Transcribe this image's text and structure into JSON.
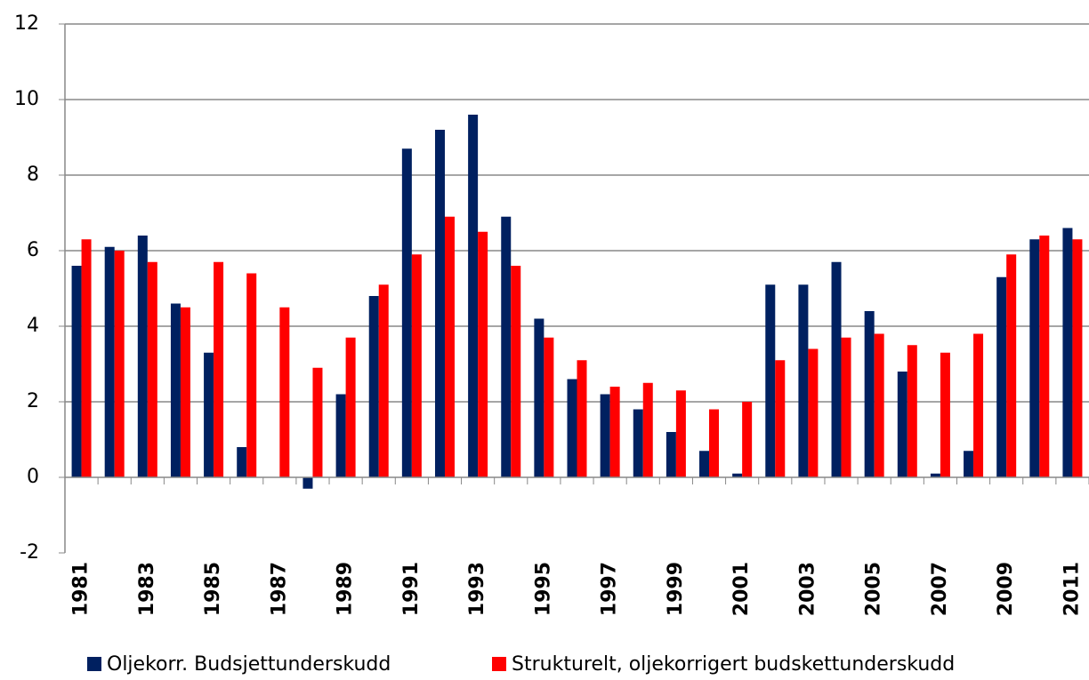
{
  "chart_data": {
    "type": "bar",
    "categories": [
      "1981",
      null,
      "1983",
      null,
      "1985",
      null,
      "1987",
      null,
      "1989",
      null,
      "1991",
      null,
      "1993",
      null,
      "1995",
      null,
      "1997",
      null,
      "1999",
      null,
      "2001",
      null,
      "2003",
      null,
      "2005",
      null,
      "2007",
      null,
      "2009",
      null,
      "2011"
    ],
    "series": [
      {
        "name": "Oljekorr. Budsjettunderskudd",
        "color": "#002060",
        "values": [
          5.6,
          6.1,
          6.4,
          4.6,
          3.3,
          0.8,
          0,
          -0.3,
          2.2,
          4.8,
          8.7,
          9.2,
          9.6,
          6.9,
          4.2,
          2.6,
          2.2,
          1.8,
          1.2,
          0.7,
          0.1,
          5.1,
          5.1,
          5.7,
          4.4,
          2.8,
          0.1,
          0.7,
          5.3,
          6.3,
          6.6
        ]
      },
      {
        "name": "Strukturelt, oljekorrigert budskettunderskudd",
        "color": "#ff0000",
        "values": [
          6.3,
          6.0,
          5.7,
          4.5,
          5.7,
          5.4,
          4.5,
          2.9,
          3.7,
          5.1,
          5.9,
          6.9,
          6.5,
          5.6,
          3.7,
          3.1,
          2.4,
          2.5,
          2.3,
          1.8,
          2.0,
          3.1,
          3.4,
          3.7,
          3.8,
          3.5,
          3.3,
          3.8,
          5.9,
          6.4,
          6.3
        ]
      }
    ],
    "ylim": [
      -2,
      12
    ],
    "yticks": [
      -2,
      0,
      2,
      4,
      6,
      8,
      10,
      12
    ],
    "grid": true,
    "legend": "bottom"
  }
}
